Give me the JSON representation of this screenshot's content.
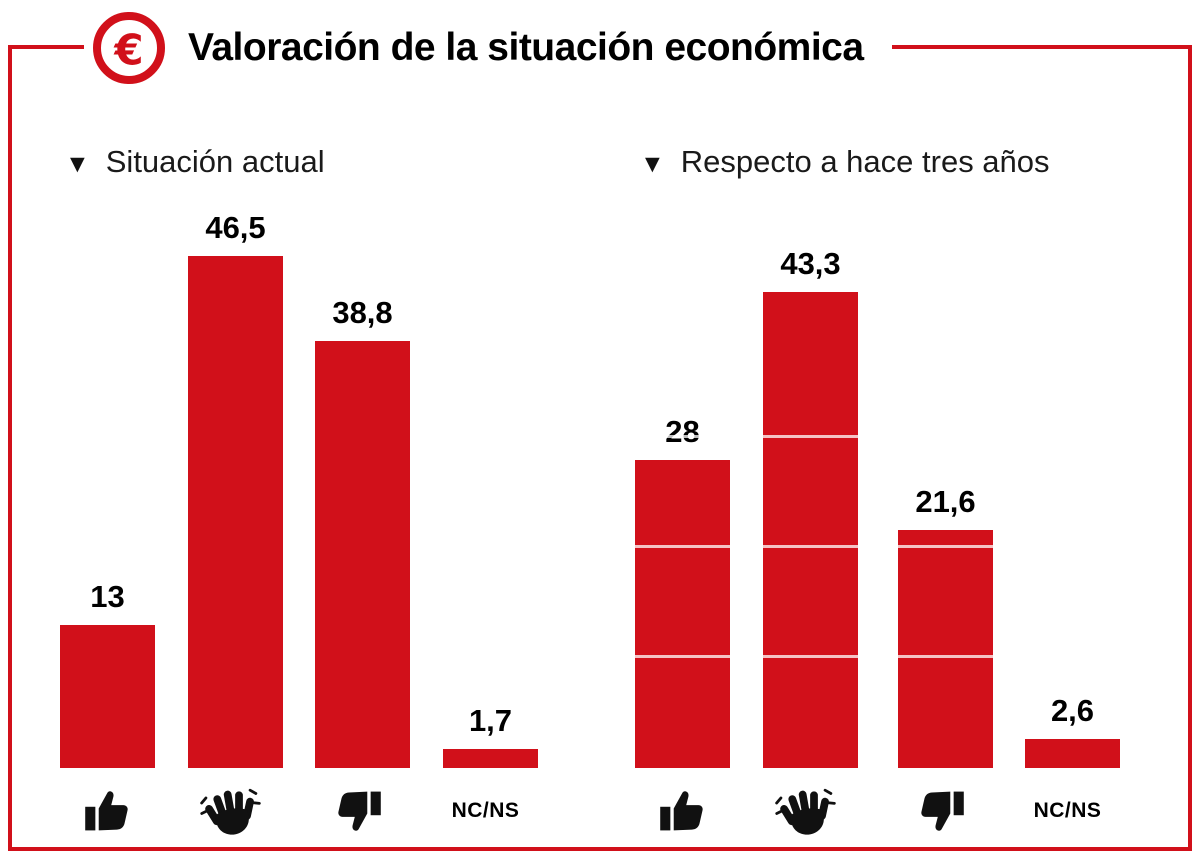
{
  "title": {
    "text": "Valoración de la situación económica",
    "euro_symbol": "€"
  },
  "colors": {
    "accent": "#d1101a",
    "bar": "#d1101a",
    "text": "#111111"
  },
  "charts": [
    {
      "heading": "Situación actual",
      "marker": "▼",
      "bars": [
        {
          "icon": "thumbs-up-icon",
          "display": "13",
          "value": 13
        },
        {
          "icon": "waving-hand-icon",
          "display": "46,5",
          "value": 46.5
        },
        {
          "icon": "thumbs-down-icon",
          "display": "38,8",
          "value": 38.8
        },
        {
          "icon": "none",
          "label": "NC/NS",
          "display": "1,7",
          "value": 1.7
        }
      ]
    },
    {
      "heading": "Respecto a hace tres años",
      "marker": "▼",
      "bars": [
        {
          "icon": "thumbs-up-icon",
          "display": "28",
          "value": 28
        },
        {
          "icon": "waving-hand-icon",
          "display": "43,3",
          "value": 43.3
        },
        {
          "icon": "thumbs-down-icon",
          "display": "21,6",
          "value": 21.6
        },
        {
          "icon": "none",
          "label": "NC/NS",
          "display": "2,6",
          "value": 2.6
        }
      ]
    }
  ],
  "chart_data": [
    {
      "type": "bar",
      "title": "Situación actual",
      "categories": [
        "thumbs-up",
        "waving-hand",
        "thumbs-down",
        "NC/NS"
      ],
      "values": [
        13,
        46.5,
        38.8,
        1.7
      ],
      "value_labels": [
        "13",
        "46,5",
        "38,8",
        "1,7"
      ],
      "ylim": [
        0,
        50
      ],
      "grid": false,
      "bar_color": "#d1101a",
      "legend": "none"
    },
    {
      "type": "bar",
      "title": "Respecto a hace tres años",
      "categories": [
        "thumbs-up",
        "waving-hand",
        "thumbs-down",
        "NC/NS"
      ],
      "values": [
        28,
        43.3,
        21.6,
        2.6
      ],
      "value_labels": [
        "28",
        "43,3",
        "21,6",
        "2,6"
      ],
      "ylim": [
        0,
        50
      ],
      "grid": true,
      "gridline_values": [
        10,
        20,
        30
      ],
      "bar_color": "#d1101a",
      "legend": "none"
    }
  ]
}
